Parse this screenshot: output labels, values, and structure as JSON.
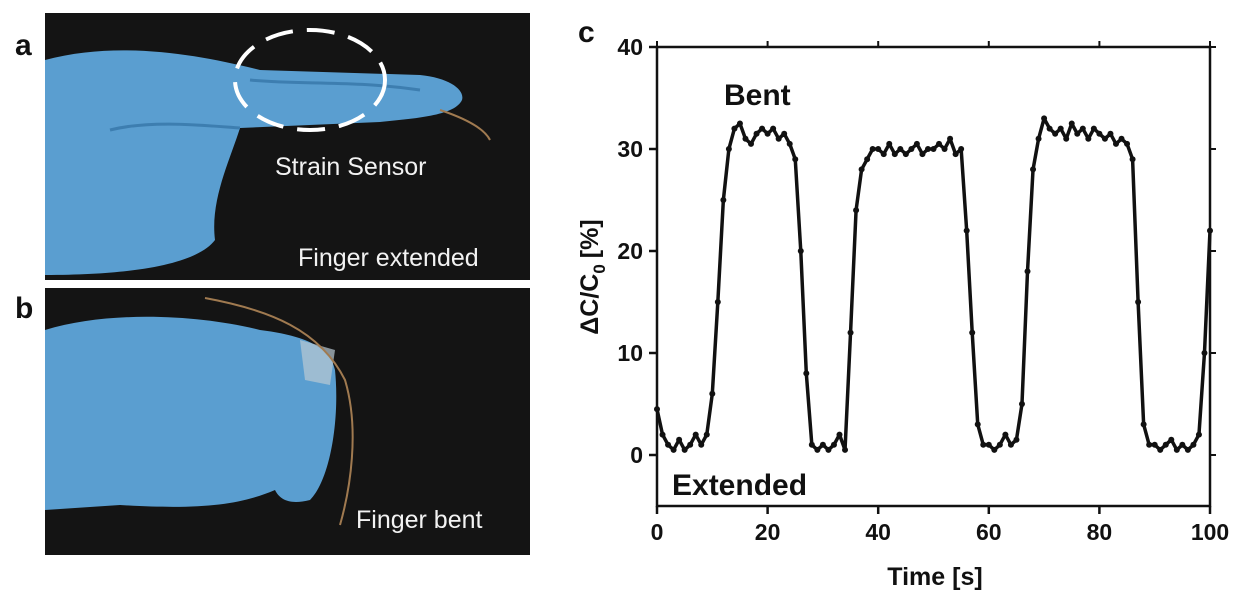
{
  "panels": [
    {
      "label": "a",
      "captions": [
        "Strain Sensor",
        "Finger extended"
      ]
    },
    {
      "label": "b",
      "captions": [
        "Finger bent"
      ]
    }
  ],
  "chart_data": {
    "type": "line",
    "panel_label": "c",
    "x_label": "Time [s]",
    "y_label": {
      "main": "ΔC/C",
      "sub": "0",
      "unit": "[%]"
    },
    "annotations": [
      "Bent",
      "Extended"
    ],
    "xlim": [
      0,
      100
    ],
    "ylim": [
      -5,
      40
    ],
    "xticks": [
      0,
      20,
      40,
      60,
      80,
      100
    ],
    "yticks": [
      0,
      10,
      20,
      30,
      40
    ],
    "x": [
      0,
      1,
      2,
      3,
      4,
      5,
      6,
      7,
      8,
      9,
      10,
      11,
      12,
      13,
      14,
      15,
      16,
      17,
      18,
      19,
      20,
      21,
      22,
      23,
      24,
      25,
      26,
      27,
      28,
      29,
      30,
      31,
      32,
      33,
      34,
      35,
      36,
      37,
      38,
      39,
      40,
      41,
      42,
      43,
      44,
      45,
      46,
      47,
      48,
      49,
      50,
      51,
      52,
      53,
      54,
      55,
      56,
      57,
      58,
      59,
      60,
      61,
      62,
      63,
      64,
      65,
      66,
      67,
      68,
      69,
      70,
      71,
      72,
      73,
      74,
      75,
      76,
      77,
      78,
      79,
      80,
      81,
      82,
      83,
      84,
      85,
      86,
      87,
      88,
      89,
      90,
      91,
      92,
      93,
      94,
      95,
      96,
      97,
      98,
      99,
      100
    ],
    "series": [
      {
        "color": "#111111",
        "values": [
          4.5,
          2,
          1,
          0.5,
          1.5,
          0.5,
          1,
          2,
          1,
          2,
          6,
          15,
          25,
          30,
          32,
          32.5,
          31,
          30.5,
          31.5,
          32,
          31.5,
          32,
          31,
          31.5,
          30.5,
          29,
          20,
          8,
          1,
          0.5,
          1,
          0.5,
          1,
          2,
          0.5,
          12,
          24,
          28,
          29,
          30,
          30,
          29.5,
          30.5,
          29.5,
          30,
          29.5,
          30,
          30.5,
          29.5,
          30,
          30,
          30.5,
          30,
          31,
          29.5,
          30,
          22,
          12,
          3,
          1,
          1,
          0.5,
          1,
          2,
          1,
          1.5,
          5,
          18,
          28,
          31,
          33,
          32,
          31.5,
          32,
          31,
          32.5,
          31.5,
          32,
          31,
          32,
          31.5,
          31,
          31.5,
          30.5,
          31,
          30.5,
          29,
          15,
          3,
          1,
          1,
          0.5,
          1,
          1.5,
          0.5,
          1,
          0.5,
          1,
          2,
          10,
          22
        ]
      }
    ]
  }
}
